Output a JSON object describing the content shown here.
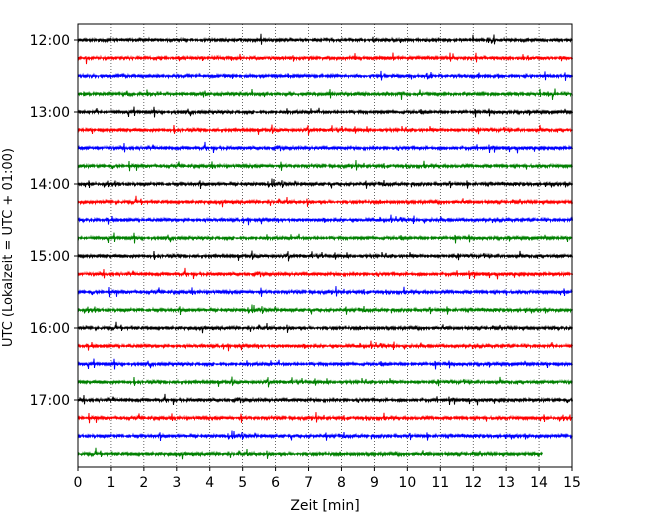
{
  "chart_data": {
    "type": "line",
    "title": "",
    "xlabel": "Zeit  [min]",
    "ylabel": "UTC (Lokalzeit = UTC + 01:00)",
    "xlim": [
      0,
      15
    ],
    "x_ticks": [
      "0",
      "1",
      "2",
      "3",
      "4",
      "5",
      "6",
      "7",
      "8",
      "9",
      "10",
      "11",
      "12",
      "13",
      "14",
      "15"
    ],
    "y_ticks": [
      "12:00",
      "13:00",
      "14:00",
      "15:00",
      "16:00",
      "17:00"
    ],
    "grid": "vertical dotted at each minute",
    "trace_colors": [
      "#000000",
      "#ff0000",
      "#0000ff",
      "#008000"
    ],
    "traces": [
      {
        "start": "12:00",
        "color": "#000000",
        "end_min": 15
      },
      {
        "start": "12:15",
        "color": "#ff0000",
        "end_min": 15
      },
      {
        "start": "12:30",
        "color": "#0000ff",
        "end_min": 15
      },
      {
        "start": "12:45",
        "color": "#008000",
        "end_min": 15
      },
      {
        "start": "13:00",
        "color": "#000000",
        "end_min": 15
      },
      {
        "start": "13:15",
        "color": "#ff0000",
        "end_min": 15
      },
      {
        "start": "13:30",
        "color": "#0000ff",
        "end_min": 15
      },
      {
        "start": "13:45",
        "color": "#008000",
        "end_min": 15
      },
      {
        "start": "14:00",
        "color": "#000000",
        "end_min": 15
      },
      {
        "start": "14:15",
        "color": "#ff0000",
        "end_min": 15
      },
      {
        "start": "14:30",
        "color": "#0000ff",
        "end_min": 15
      },
      {
        "start": "14:45",
        "color": "#008000",
        "end_min": 15
      },
      {
        "start": "15:00",
        "color": "#000000",
        "end_min": 15
      },
      {
        "start": "15:15",
        "color": "#ff0000",
        "end_min": 15
      },
      {
        "start": "15:30",
        "color": "#0000ff",
        "end_min": 15
      },
      {
        "start": "15:45",
        "color": "#008000",
        "end_min": 15
      },
      {
        "start": "16:00",
        "color": "#000000",
        "end_min": 15
      },
      {
        "start": "16:15",
        "color": "#ff0000",
        "end_min": 15
      },
      {
        "start": "16:30",
        "color": "#0000ff",
        "end_min": 15
      },
      {
        "start": "16:45",
        "color": "#008000",
        "end_min": 15
      },
      {
        "start": "17:00",
        "color": "#000000",
        "end_min": 15
      },
      {
        "start": "17:15",
        "color": "#ff0000",
        "end_min": 15
      },
      {
        "start": "17:30",
        "color": "#0000ff",
        "end_min": 15
      },
      {
        "start": "17:45",
        "color": "#008000",
        "end_min": 14.1
      }
    ]
  }
}
